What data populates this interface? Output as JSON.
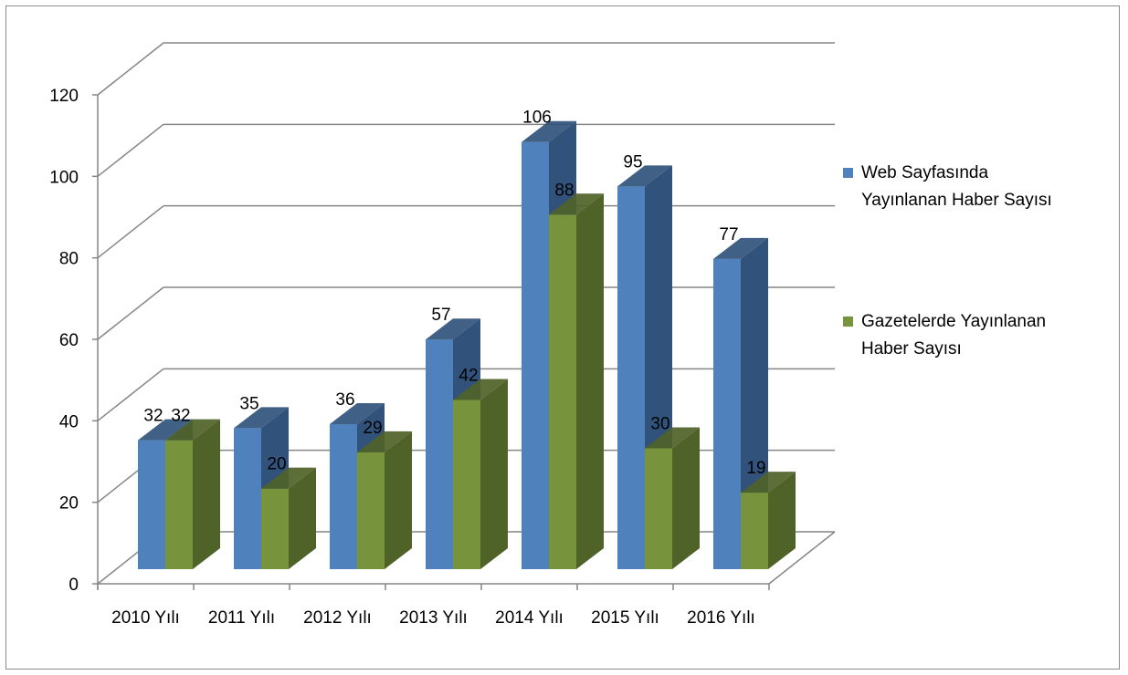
{
  "chart_data": {
    "type": "bar",
    "style": "3d-clustered-column",
    "categories": [
      "2010 Yılı",
      "2011 Yılı",
      "2012 Yılı",
      "2013 Yılı",
      "2014 Yılı",
      "2015 Yılı",
      "2016 Yılı"
    ],
    "series": [
      {
        "name": "Web Sayfasında Yayınlanan Haber Sayısı",
        "values": [
          32,
          35,
          36,
          57,
          106,
          95,
          77
        ],
        "color": "#4f81bd",
        "side_color": "#31527b"
      },
      {
        "name": "Gazetelerde Yayınlanan Haber Sayısı",
        "values": [
          32,
          20,
          29,
          42,
          88,
          30,
          19
        ],
        "color": "#77933c",
        "side_color": "#4f6228"
      }
    ],
    "legend_lines": [
      [
        "Web Sayfasında",
        "Yayınlanan Haber Sayısı"
      ],
      [
        "Gazetelerde Yayınlanan",
        "Haber Sayısı"
      ]
    ],
    "yticks": [
      0,
      20,
      40,
      60,
      80,
      100,
      120
    ],
    "ylim": [
      0,
      120
    ],
    "title": "",
    "xlabel": "",
    "ylabel": "",
    "grid": true,
    "legend_position": "right"
  }
}
